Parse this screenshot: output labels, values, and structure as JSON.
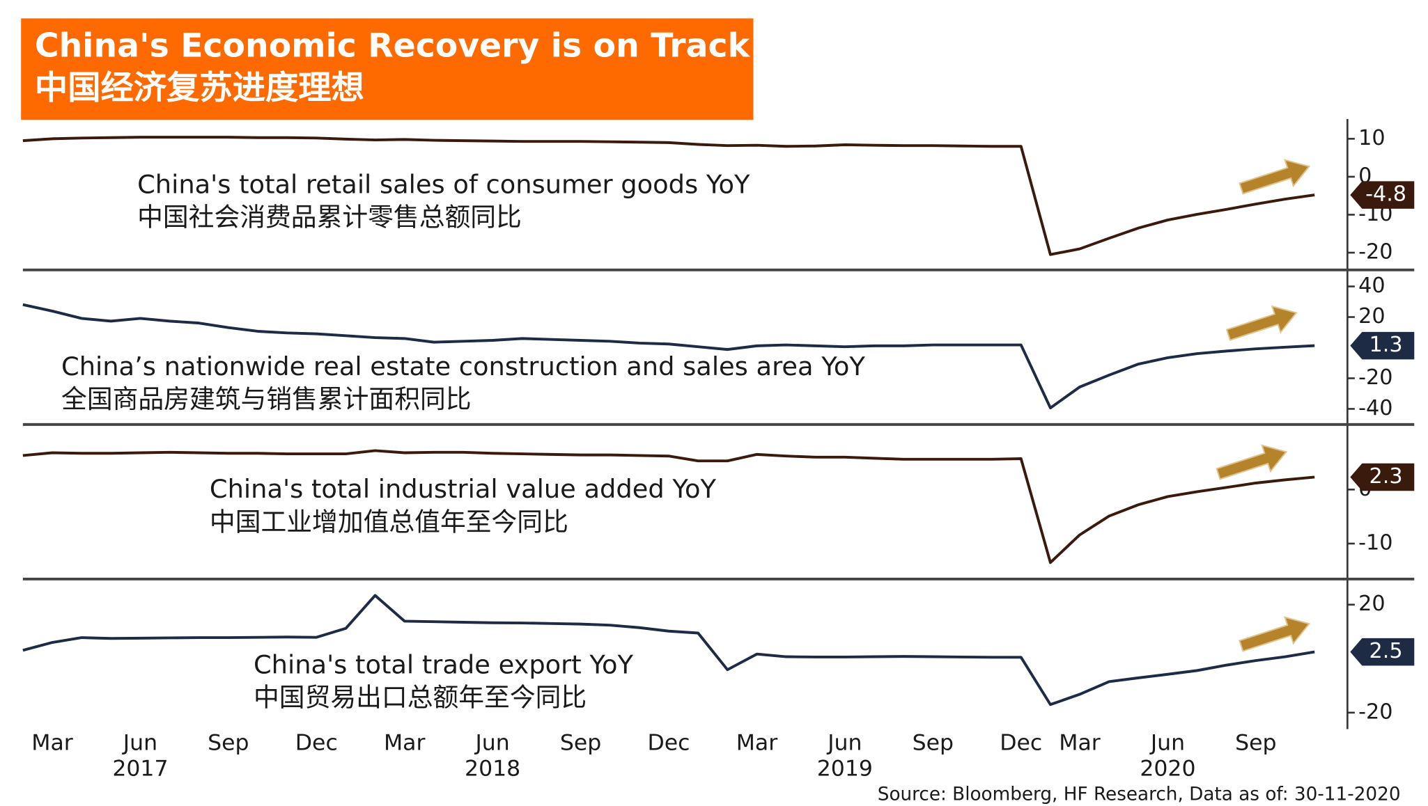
{
  "header": {
    "title": "China's Economic Recovery is on Track",
    "subtitle": "中国经济复苏进度理想"
  },
  "source": "Source: Bloomberg, HF Research, Data as of: 30-11-2020",
  "chart_data": [
    {
      "type": "line",
      "title": "China's total retail sales of consumer goods YoY",
      "subtitle": "中国社会消费品累计零售总额同比",
      "categories": [
        "2017-02",
        "2017-03",
        "2017-04",
        "2017-05",
        "2017-06",
        "2017-07",
        "2017-08",
        "2017-09",
        "2017-10",
        "2017-11",
        "2017-12",
        "2018-01",
        "2018-02",
        "2018-03",
        "2018-04",
        "2018-05",
        "2018-06",
        "2018-07",
        "2018-08",
        "2018-09",
        "2018-10",
        "2018-11",
        "2018-12",
        "2019-01",
        "2019-02",
        "2019-03",
        "2019-04",
        "2019-05",
        "2019-06",
        "2019-07",
        "2019-08",
        "2019-09",
        "2019-10",
        "2019-11",
        "2019-12",
        "2020-02",
        "2020-03",
        "2020-04",
        "2020-05",
        "2020-06",
        "2020-07",
        "2020-08",
        "2020-09",
        "2020-10",
        "2020-11"
      ],
      "series": [
        {
          "name": "China's total retail sales of consumer goods YoY",
          "color": "#3b1a0e",
          "values": [
            9.5,
            10.0,
            10.2,
            10.3,
            10.4,
            10.4,
            10.4,
            10.4,
            10.3,
            10.3,
            10.2,
            9.9,
            9.7,
            9.8,
            9.6,
            9.5,
            9.4,
            9.3,
            9.3,
            9.3,
            9.2,
            9.1,
            9.0,
            8.5,
            8.2,
            8.3,
            8.0,
            8.1,
            8.4,
            8.3,
            8.2,
            8.2,
            8.1,
            8.0,
            8.0,
            -20.5,
            -19.0,
            -16.2,
            -13.5,
            -11.4,
            -9.9,
            -8.6,
            -7.2,
            -5.9,
            -4.8
          ]
        }
      ],
      "ylim": [
        -24.3,
        14.0
      ],
      "yticks": [
        10,
        0,
        -10,
        -20
      ]
    },
    {
      "type": "line",
      "title": "China’s nationwide real estate construction and sales area YoY",
      "subtitle": "全国商品房建筑与销售累计面积同比",
      "categories": [
        "2017-02",
        "2017-03",
        "2017-04",
        "2017-05",
        "2017-06",
        "2017-07",
        "2017-08",
        "2017-09",
        "2017-10",
        "2017-11",
        "2017-12",
        "2018-01",
        "2018-02",
        "2018-03",
        "2018-04",
        "2018-05",
        "2018-06",
        "2018-07",
        "2018-08",
        "2018-09",
        "2018-10",
        "2018-11",
        "2018-12",
        "2019-01",
        "2019-02",
        "2019-03",
        "2019-04",
        "2019-05",
        "2019-06",
        "2019-07",
        "2019-08",
        "2019-09",
        "2019-10",
        "2019-11",
        "2019-12",
        "2020-02",
        "2020-03",
        "2020-04",
        "2020-05",
        "2020-06",
        "2020-07",
        "2020-08",
        "2020-09",
        "2020-10",
        "2020-11"
      ],
      "series": [
        {
          "name": "China’s nationwide real estate construction and sales area YoY",
          "color": "#1e2b45",
          "values": [
            28.1,
            23.9,
            19.1,
            17.3,
            19.1,
            17.3,
            16.1,
            13.1,
            10.7,
            9.6,
            9.0,
            7.8,
            6.6,
            6.0,
            3.6,
            4.2,
            4.8,
            6.0,
            5.4,
            4.8,
            4.2,
            3.0,
            2.4,
            0.6,
            -1.2,
            1.2,
            1.8,
            1.2,
            0.6,
            1.2,
            1.2,
            1.8,
            1.8,
            1.8,
            1.8,
            -39.4,
            -25.7,
            -17.9,
            -10.7,
            -6.6,
            -3.9,
            -2.2,
            -0.8,
            0.3,
            1.3
          ]
        }
      ],
      "ylim": [
        -49.6,
        49.0
      ],
      "yticks": [
        40,
        20,
        -20,
        -40
      ]
    },
    {
      "type": "line",
      "title": "China's total industrial value added YoY",
      "subtitle": "中国工业增加值总值年至今同比",
      "categories": [
        "2017-02",
        "2017-03",
        "2017-04",
        "2017-05",
        "2017-06",
        "2017-07",
        "2017-08",
        "2017-09",
        "2017-10",
        "2017-11",
        "2017-12",
        "2018-01",
        "2018-02",
        "2018-03",
        "2018-04",
        "2018-05",
        "2018-06",
        "2018-07",
        "2018-08",
        "2018-09",
        "2018-10",
        "2018-11",
        "2018-12",
        "2019-01",
        "2019-02",
        "2019-03",
        "2019-04",
        "2019-05",
        "2019-06",
        "2019-07",
        "2019-08",
        "2019-09",
        "2019-10",
        "2019-11",
        "2019-12",
        "2020-02",
        "2020-03",
        "2020-04",
        "2020-05",
        "2020-06",
        "2020-07",
        "2020-08",
        "2020-09",
        "2020-10",
        "2020-11"
      ],
      "series": [
        {
          "name": "China's total industrial value added YoY",
          "color": "#3b1a0e",
          "values": [
            6.3,
            6.8,
            6.7,
            6.7,
            6.8,
            6.9,
            6.8,
            6.7,
            6.7,
            6.6,
            6.6,
            6.6,
            7.2,
            6.8,
            6.9,
            6.9,
            6.7,
            6.6,
            6.5,
            6.4,
            6.4,
            6.3,
            6.2,
            5.3,
            5.3,
            6.5,
            6.2,
            6.0,
            6.0,
            5.8,
            5.6,
            5.6,
            5.6,
            5.6,
            5.7,
            -13.5,
            -8.4,
            -4.9,
            -2.8,
            -1.3,
            -0.4,
            0.4,
            1.2,
            1.8,
            2.3
          ]
        }
      ],
      "ylim": [
        -16.4,
        11.7
      ],
      "yticks": [
        0,
        -10
      ]
    },
    {
      "type": "line",
      "title": "China's total trade export YoY",
      "subtitle": "中国贸易出口总额年至今同比",
      "categories": [
        "2017-02",
        "2017-03",
        "2017-04",
        "2017-05",
        "2017-06",
        "2017-07",
        "2017-08",
        "2017-09",
        "2017-10",
        "2017-11",
        "2017-12",
        "2018-01",
        "2018-02",
        "2018-03",
        "2018-04",
        "2018-05",
        "2018-06",
        "2018-07",
        "2018-08",
        "2018-09",
        "2018-10",
        "2018-11",
        "2018-12",
        "2019-01",
        "2019-02",
        "2019-03",
        "2019-04",
        "2019-05",
        "2019-06",
        "2019-07",
        "2019-08",
        "2019-09",
        "2019-10",
        "2019-11",
        "2019-12",
        "2020-02",
        "2020-03",
        "2020-04",
        "2020-05",
        "2020-06",
        "2020-07",
        "2020-08",
        "2020-09",
        "2020-10",
        "2020-11"
      ],
      "series": [
        {
          "name": "China's total trade export YoY",
          "color": "#1e2b45",
          "values": [
            3.1,
            6.0,
            7.8,
            7.5,
            7.6,
            7.7,
            7.8,
            7.8,
            7.9,
            8.0,
            7.9,
            11.2,
            23.4,
            13.9,
            13.7,
            13.5,
            13.3,
            13.2,
            13.0,
            12.8,
            12.4,
            11.5,
            10.2,
            9.5,
            -4.1,
            1.7,
            0.7,
            0.6,
            0.6,
            0.7,
            0.8,
            0.7,
            0.6,
            0.5,
            0.5,
            -17.0,
            -13.2,
            -8.5,
            -7.1,
            -5.8,
            -4.4,
            -2.4,
            -0.7,
            0.7,
            2.5
          ]
        }
      ],
      "ylim": [
        -27.1,
        28.8
      ],
      "yticks": [
        20,
        -20
      ],
      "xticks": [
        {
          "value": "2017-03",
          "label": "Mar"
        },
        {
          "value": "2017-06",
          "label": "Jun"
        },
        {
          "value": "2017-09",
          "label": "Sep"
        },
        {
          "value": "2017-12",
          "label": "Dec"
        },
        {
          "value": "2018-03",
          "label": "Mar"
        },
        {
          "value": "2018-06",
          "label": "Jun"
        },
        {
          "value": "2018-09",
          "label": "Sep"
        },
        {
          "value": "2018-12",
          "label": "Dec"
        },
        {
          "value": "2019-03",
          "label": "Mar"
        },
        {
          "value": "2019-06",
          "label": "Jun"
        },
        {
          "value": "2019-09",
          "label": "Sep"
        },
        {
          "value": "2019-12",
          "label": "Dec"
        },
        {
          "value": "2020-03",
          "label": "Mar"
        },
        {
          "value": "2020-06",
          "label": "Jun"
        },
        {
          "value": "2020-09",
          "label": "Sep"
        }
      ],
      "xtick_years": [
        {
          "value": "2017-06",
          "label": "2017"
        },
        {
          "value": "2018-06",
          "label": "2018"
        },
        {
          "value": "2019-06",
          "label": "2019"
        },
        {
          "value": "2020-06",
          "label": "2020"
        }
      ]
    }
  ]
}
